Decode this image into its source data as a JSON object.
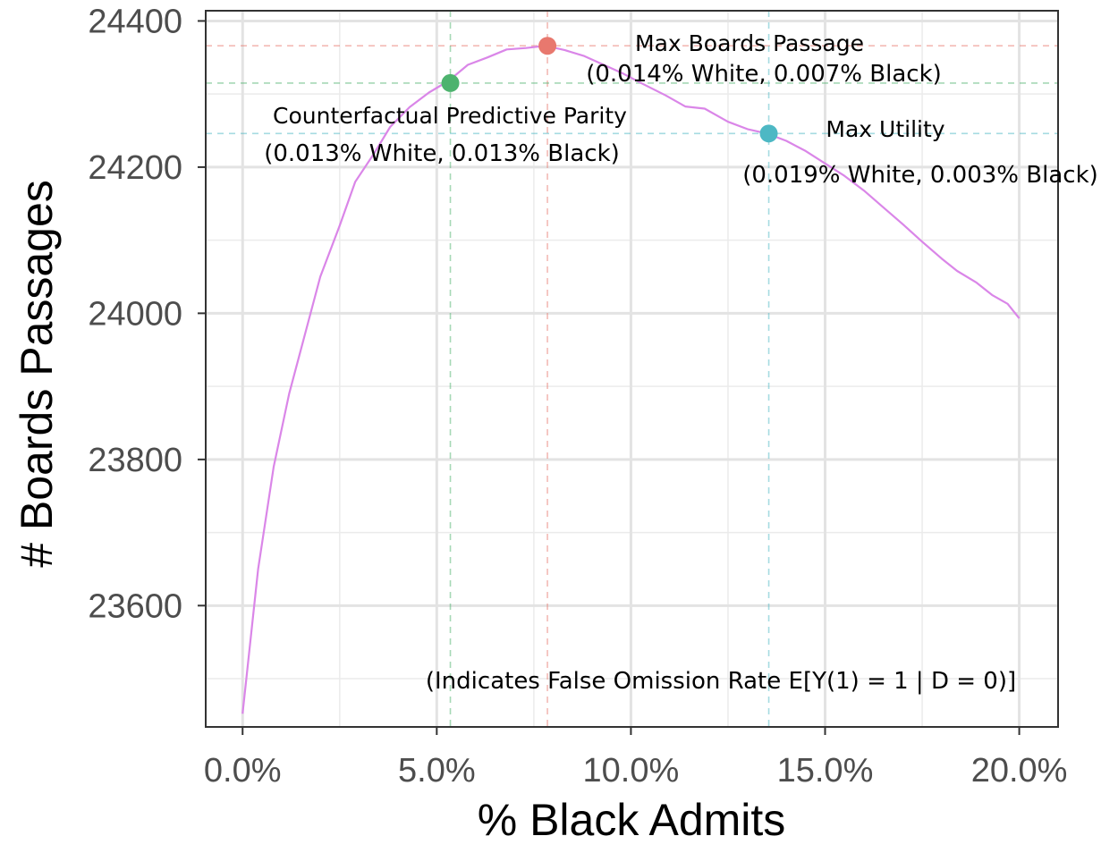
{
  "chart_data": {
    "type": "line",
    "xlabel": "% Black Admits",
    "ylabel": "# Boards Passages",
    "xlim": [
      -0.95,
      21.0
    ],
    "ylim": [
      23434,
      24414
    ],
    "x_ticks": [
      0,
      5,
      10,
      15,
      20
    ],
    "x_tick_labels": [
      "0.0%",
      "5.0%",
      "10.0%",
      "15.0%",
      "20.0%"
    ],
    "y_ticks": [
      23600,
      23800,
      24000,
      24200,
      24400
    ],
    "y_tick_labels": [
      "23600",
      "23800",
      "24000",
      "24200",
      "24400"
    ],
    "grid": true,
    "series": [
      {
        "color": "#DA86E8",
        "points": [
          [
            0.0,
            23452
          ],
          [
            0.4,
            23650
          ],
          [
            0.8,
            23790
          ],
          [
            1.2,
            23890
          ],
          [
            1.6,
            23970
          ],
          [
            2.0,
            24050
          ],
          [
            2.5,
            24120
          ],
          [
            2.9,
            24180
          ],
          [
            3.4,
            24220
          ],
          [
            3.8,
            24255
          ],
          [
            4.3,
            24282
          ],
          [
            4.8,
            24302
          ],
          [
            5.3,
            24318
          ],
          [
            5.8,
            24340
          ],
          [
            6.3,
            24350
          ],
          [
            6.8,
            24361
          ],
          [
            7.3,
            24363
          ],
          [
            7.8,
            24366
          ],
          [
            8.3,
            24360
          ],
          [
            8.8,
            24352
          ],
          [
            9.3,
            24340
          ],
          [
            9.8,
            24328
          ],
          [
            10.3,
            24314
          ],
          [
            10.9,
            24298
          ],
          [
            11.4,
            24283
          ],
          [
            11.9,
            24280
          ],
          [
            12.5,
            24262
          ],
          [
            13.0,
            24252
          ],
          [
            13.5,
            24246
          ],
          [
            14.0,
            24236
          ],
          [
            14.5,
            24222
          ],
          [
            15.0,
            24205
          ],
          [
            15.5,
            24188
          ],
          [
            16.0,
            24168
          ],
          [
            16.5,
            24145
          ],
          [
            17.0,
            24122
          ],
          [
            17.5,
            24098
          ],
          [
            18.0,
            24075
          ],
          [
            18.4,
            24058
          ],
          [
            18.9,
            24042
          ],
          [
            19.3,
            24025
          ],
          [
            19.7,
            24013
          ],
          [
            20.0,
            23993
          ]
        ]
      }
    ],
    "highlights": [
      {
        "label": "Max Boards Passage",
        "sublabel": "(0.014% White, 0.007% Black)",
        "x": 7.85,
        "y": 24366,
        "color": "#E8786E"
      },
      {
        "label": "Counterfactual Predictive Parity",
        "sublabel": "(0.013% White, 0.013% Black)",
        "x": 5.35,
        "y": 24315,
        "color": "#4DB36E"
      },
      {
        "label": "Max Utility",
        "sublabel": "(0.019% White, 0.003% Black)",
        "x": 13.55,
        "y": 24246,
        "color": "#4DB8C4"
      }
    ],
    "note": "(Indicates False Omission Rate E[Y(1) = 1 | D = 0)]"
  }
}
